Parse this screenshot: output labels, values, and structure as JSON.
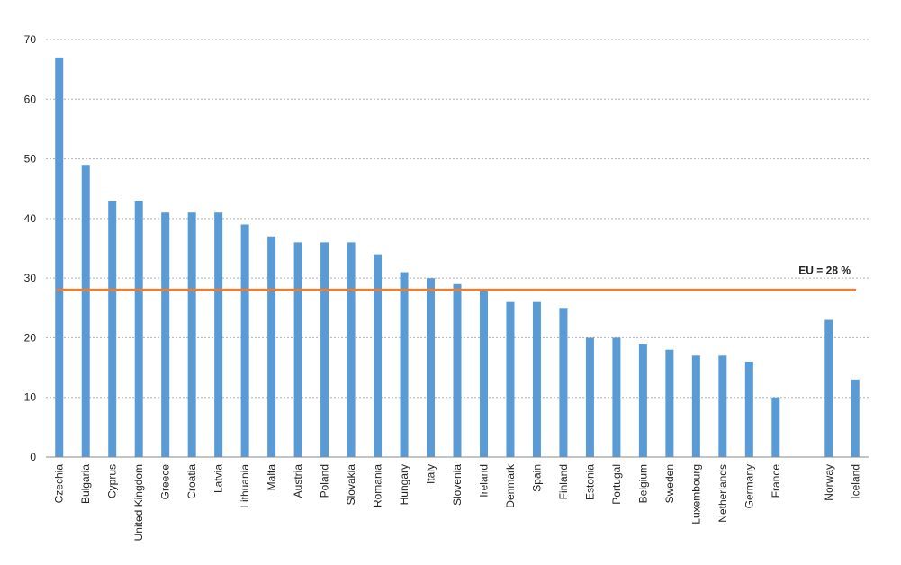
{
  "chart_data": {
    "type": "bar",
    "title": "",
    "xlabel": "",
    "ylabel": "",
    "ylim": [
      0,
      70
    ],
    "yticks": [
      0,
      10,
      20,
      30,
      40,
      50,
      60,
      70
    ],
    "grid": true,
    "categories": [
      "Czechia",
      "Bulgaria",
      "Cyprus",
      "United Kingdom",
      "Greece",
      "Croatia",
      "Latvia",
      "Lithuania",
      "Malta",
      "Austria",
      "Poland",
      "Slovakia",
      "Romania",
      "Hungary",
      "Italy",
      "Slovenia",
      "Ireland",
      "Denmark",
      "Spain",
      "Finland",
      "Estonia",
      "Portugal",
      "Belgium",
      "Sweden",
      "Luxembourg",
      "Netherlands",
      "Germany",
      "France",
      "Norway",
      "Iceland"
    ],
    "values": [
      67,
      49,
      43,
      43,
      41,
      41,
      41,
      39,
      37,
      36,
      36,
      36,
      34,
      31,
      30,
      29,
      28,
      26,
      26,
      25,
      20,
      20,
      19,
      18,
      17,
      17,
      16,
      10,
      23,
      13
    ],
    "gap_before": [
      "Norway"
    ],
    "reference_line": {
      "value": 28,
      "label": "EU = 28 %",
      "color": "#ed7d31"
    },
    "bar_color": "#5b9bd5",
    "grid_color": "#b0b0b0"
  }
}
